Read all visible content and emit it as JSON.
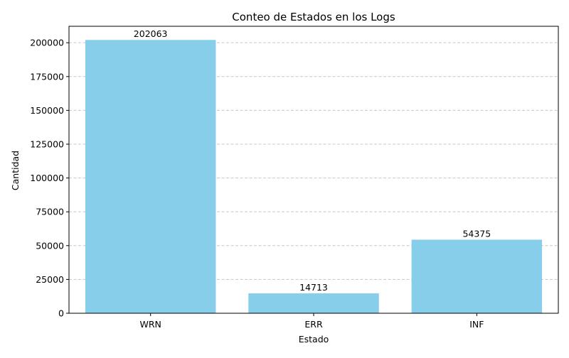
{
  "chart_data": {
    "type": "bar",
    "title": "Conteo de Estados en los Logs",
    "xlabel": "Estado",
    "ylabel": "Cantidad",
    "categories": [
      "WRN",
      "ERR",
      "INF"
    ],
    "values": [
      202063,
      14713,
      54375
    ],
    "data_labels": [
      "202063",
      "14713",
      "54375"
    ],
    "ylim": [
      0,
      212166
    ],
    "yticks": [
      0,
      25000,
      50000,
      75000,
      100000,
      125000,
      150000,
      175000,
      200000
    ],
    "ytick_labels": [
      "0",
      "25000",
      "50000",
      "75000",
      "100000",
      "125000",
      "150000",
      "175000",
      "200000"
    ],
    "grid": "y-dashed",
    "bar_color": "#87ceeb",
    "grid_color": "#c8c8c8",
    "axis_color": "#000000"
  }
}
